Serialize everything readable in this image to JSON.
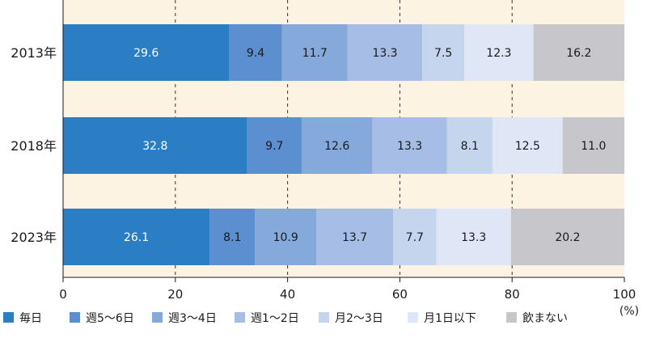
{
  "chart_data": {
    "type": "bar",
    "orientation": "horizontal",
    "stacked": true,
    "categories": [
      "2013年",
      "2018年",
      "2023年"
    ],
    "series": [
      {
        "name": "毎日",
        "color": "#2b7ec4",
        "label_color": "#ffffff",
        "values": [
          29.6,
          32.8,
          26.1
        ]
      },
      {
        "name": "週5～6日",
        "color": "#5b8fcf",
        "label_color": "#1a1a1a",
        "values": [
          9.4,
          9.7,
          8.1
        ]
      },
      {
        "name": "週3～4日",
        "color": "#86a9dc",
        "label_color": "#1a1a1a",
        "values": [
          11.7,
          12.6,
          10.9
        ]
      },
      {
        "name": "週1～2日",
        "color": "#a6bde5",
        "label_color": "#1a1a1a",
        "values": [
          13.3,
          13.3,
          13.7
        ]
      },
      {
        "name": "月2～3日",
        "color": "#c5d5ee",
        "label_color": "#1a1a1a",
        "values": [
          7.5,
          8.1,
          7.7
        ]
      },
      {
        "name": "月1日以下",
        "color": "#dfe6f6",
        "label_color": "#1a1a1a",
        "values": [
          12.3,
          12.5,
          13.3
        ]
      },
      {
        "name": "飲まない",
        "color": "#c6c6cb",
        "label_color": "#1a1a1a",
        "values": [
          16.2,
          11.0,
          20.2
        ]
      }
    ],
    "x_ticks": [
      0,
      20,
      40,
      60,
      80,
      100
    ],
    "xlim": [
      0,
      100
    ],
    "x_unit": "(%)",
    "legend_position": "bottom",
    "grid": "vertical dashed",
    "background_color": "#fdf3e2"
  }
}
